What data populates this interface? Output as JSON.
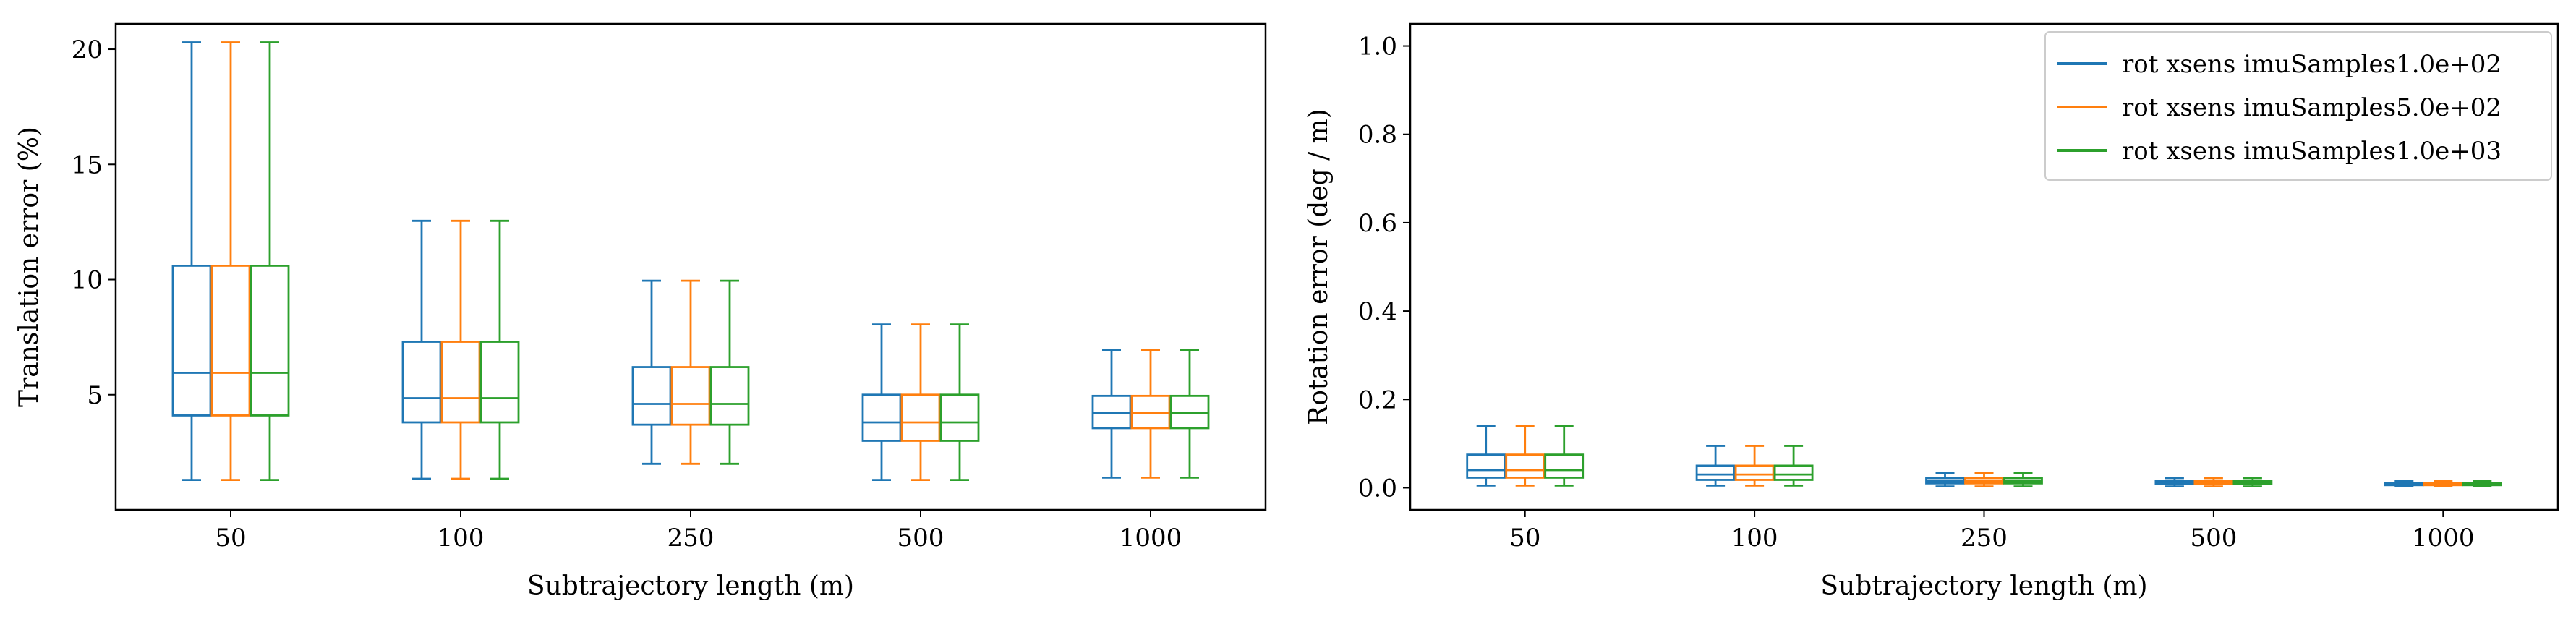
{
  "colors": {
    "series": [
      "#1f77b4",
      "#ff7f0e",
      "#2ca02c"
    ],
    "axis": "#000000",
    "background": "#ffffff"
  },
  "chart_data": [
    {
      "type": "box",
      "title": "",
      "xlabel": "Subtrajectory length (m)",
      "ylabel": "Translation error (%)",
      "categories": [
        "50",
        "100",
        "250",
        "500",
        "1000"
      ],
      "ylim": [
        0,
        21.1
      ],
      "yticks": [
        5,
        10,
        15,
        20
      ],
      "legend": null,
      "series": [
        {
          "name": "rot xsens imuSamples1.0e+02",
          "boxes": [
            {
              "whislo": 1.3,
              "q1": 4.1,
              "med": 5.95,
              "q3": 10.6,
              "whishi": 20.3
            },
            {
              "whislo": 1.35,
              "q1": 3.8,
              "med": 4.85,
              "q3": 7.3,
              "whishi": 12.55
            },
            {
              "whislo": 2.0,
              "q1": 3.7,
              "med": 4.6,
              "q3": 6.2,
              "whishi": 9.95
            },
            {
              "whislo": 1.3,
              "q1": 3.0,
              "med": 3.8,
              "q3": 5.0,
              "whishi": 8.05
            },
            {
              "whislo": 1.4,
              "q1": 3.55,
              "med": 4.2,
              "q3": 4.95,
              "whishi": 6.95
            }
          ]
        },
        {
          "name": "rot xsens imuSamples5.0e+02",
          "boxes": [
            {
              "whislo": 1.3,
              "q1": 4.1,
              "med": 5.95,
              "q3": 10.6,
              "whishi": 20.3
            },
            {
              "whislo": 1.35,
              "q1": 3.8,
              "med": 4.85,
              "q3": 7.3,
              "whishi": 12.55
            },
            {
              "whislo": 2.0,
              "q1": 3.7,
              "med": 4.6,
              "q3": 6.2,
              "whishi": 9.95
            },
            {
              "whislo": 1.3,
              "q1": 3.0,
              "med": 3.8,
              "q3": 5.0,
              "whishi": 8.05
            },
            {
              "whislo": 1.4,
              "q1": 3.55,
              "med": 4.2,
              "q3": 4.95,
              "whishi": 6.95
            }
          ]
        },
        {
          "name": "rot xsens imuSamples1.0e+03",
          "boxes": [
            {
              "whislo": 1.3,
              "q1": 4.1,
              "med": 5.95,
              "q3": 10.6,
              "whishi": 20.3
            },
            {
              "whislo": 1.35,
              "q1": 3.8,
              "med": 4.85,
              "q3": 7.3,
              "whishi": 12.55
            },
            {
              "whislo": 2.0,
              "q1": 3.7,
              "med": 4.6,
              "q3": 6.2,
              "whishi": 9.95
            },
            {
              "whislo": 1.3,
              "q1": 3.0,
              "med": 3.8,
              "q3": 5.0,
              "whishi": 8.05
            },
            {
              "whislo": 1.4,
              "q1": 3.55,
              "med": 4.2,
              "q3": 4.95,
              "whishi": 6.95
            }
          ]
        }
      ]
    },
    {
      "type": "box",
      "title": "",
      "xlabel": "Subtrajectory length (m)",
      "ylabel": "Rotation error (deg / m)",
      "categories": [
        "50",
        "100",
        "250",
        "500",
        "1000"
      ],
      "ylim": [
        -0.05,
        1.05
      ],
      "yticks": [
        "0.0",
        "0.2",
        "0.4",
        "0.6",
        "0.8",
        "1.0"
      ],
      "legend": "upper-right",
      "series": [
        {
          "name": "rot xsens imuSamples1.0e+02",
          "boxes": [
            {
              "whislo": 0.005,
              "q1": 0.023,
              "med": 0.04,
              "q3": 0.075,
              "whishi": 0.14
            },
            {
              "whislo": 0.005,
              "q1": 0.018,
              "med": 0.03,
              "q3": 0.05,
              "whishi": 0.095
            },
            {
              "whislo": 0.003,
              "q1": 0.01,
              "med": 0.016,
              "q3": 0.022,
              "whishi": 0.034
            },
            {
              "whislo": 0.003,
              "q1": 0.008,
              "med": 0.012,
              "q3": 0.016,
              "whishi": 0.022
            },
            {
              "whislo": 0.003,
              "q1": 0.006,
              "med": 0.009,
              "q3": 0.011,
              "whishi": 0.015
            }
          ]
        },
        {
          "name": "rot xsens imuSamples5.0e+02",
          "boxes": [
            {
              "whislo": 0.005,
              "q1": 0.023,
              "med": 0.04,
              "q3": 0.075,
              "whishi": 0.14
            },
            {
              "whislo": 0.005,
              "q1": 0.018,
              "med": 0.03,
              "q3": 0.05,
              "whishi": 0.095
            },
            {
              "whislo": 0.003,
              "q1": 0.01,
              "med": 0.016,
              "q3": 0.022,
              "whishi": 0.034
            },
            {
              "whislo": 0.003,
              "q1": 0.008,
              "med": 0.012,
              "q3": 0.016,
              "whishi": 0.022
            },
            {
              "whislo": 0.003,
              "q1": 0.006,
              "med": 0.009,
              "q3": 0.011,
              "whishi": 0.015
            }
          ]
        },
        {
          "name": "rot xsens imuSamples1.0e+03",
          "boxes": [
            {
              "whislo": 0.005,
              "q1": 0.023,
              "med": 0.04,
              "q3": 0.075,
              "whishi": 0.14
            },
            {
              "whislo": 0.005,
              "q1": 0.018,
              "med": 0.03,
              "q3": 0.05,
              "whishi": 0.095
            },
            {
              "whislo": 0.003,
              "q1": 0.01,
              "med": 0.016,
              "q3": 0.022,
              "whishi": 0.034
            },
            {
              "whislo": 0.003,
              "q1": 0.008,
              "med": 0.012,
              "q3": 0.016,
              "whishi": 0.022
            },
            {
              "whislo": 0.003,
              "q1": 0.006,
              "med": 0.009,
              "q3": 0.011,
              "whishi": 0.015
            }
          ]
        }
      ]
    }
  ]
}
